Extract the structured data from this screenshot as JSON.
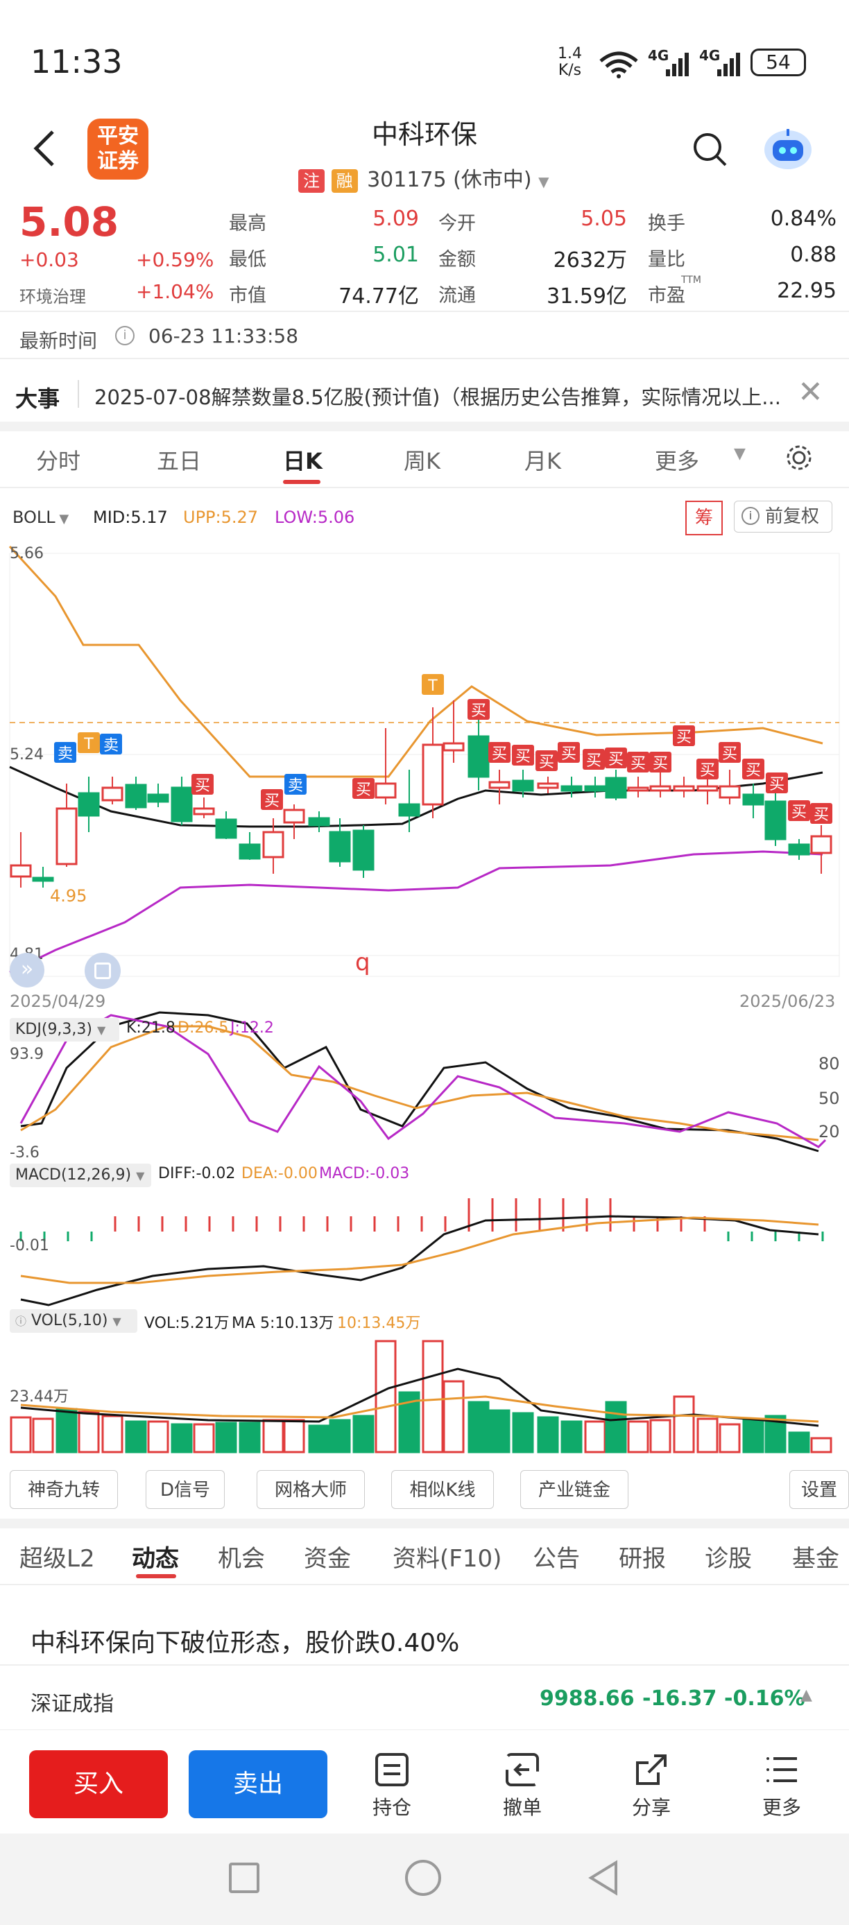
{
  "status_bar": {
    "time": "11:33",
    "net_speed": "1.4",
    "net_unit": "K/s",
    "sig1": "4G",
    "sig2": "4G",
    "battery": "54"
  },
  "header": {
    "logo_line1": "平安",
    "logo_line2": "证券",
    "title": "中科环保",
    "tag_zhu": "注",
    "tag_rong": "融",
    "code": "301175 (休市中)"
  },
  "quote": {
    "price": "5.08",
    "change": "+0.03",
    "change_pct": "+0.59%",
    "sector": "环境治理",
    "sector_pct": "+1.04%",
    "high_label": "最高",
    "high": "5.09",
    "open_label": "今开",
    "open": "5.05",
    "turnover_label": "换手",
    "turnover": "0.84%",
    "low_label": "最低",
    "low": "5.01",
    "amount_label": "金额",
    "amount": "2632万",
    "volratio_label": "量比",
    "volratio": "0.88",
    "mcap_label": "市值",
    "mcap": "74.77亿",
    "float_label": "流通",
    "float": "31.59亿",
    "pe_label": "市盈",
    "pe_sup": "TTM",
    "pe": "22.95"
  },
  "update": {
    "label": "最新时间",
    "value": "06-23 11:33:58"
  },
  "event": {
    "label": "大事",
    "text": "2025-07-08解禁数量8.5亿股(预计值)（根据历史公告推算，实际情况以上..."
  },
  "chart_tabs": [
    "分时",
    "五日",
    "日K",
    "周K",
    "月K",
    "更多"
  ],
  "chart_tab_active": "日K",
  "boll_legend": {
    "name": "BOLL",
    "mid": "MID:5.17",
    "upp": "UPP:5.27",
    "low": "LOW:5.06",
    "chou": "筹",
    "fq": "前复权"
  },
  "price_axis": {
    "top": "5.66",
    "mid": "5.24",
    "bottom": "4.81",
    "low_mark": "4.95",
    "start_date": "2025/04/29",
    "end_date": "2025/06/23",
    "stray": "q"
  },
  "kdj_legend": {
    "name": "KDJ(9,3,3)",
    "k": "K:21.8",
    "d": "D:26.5",
    "j": "J:12.2",
    "top": "93.9",
    "bottom": "-3.6",
    "r80": "80",
    "r50": "50",
    "r20": "20"
  },
  "macd_legend": {
    "name": "MACD(12,26,9)",
    "diff": "DIFF:-0.02",
    "dea": "DEA:-0.00",
    "macd": "MACD:-0.03",
    "axis": "-0.01"
  },
  "vol_legend": {
    "name": "VOL(5,10)",
    "vol": "VOL:5.21万",
    "ma5": "MA 5:10.13万",
    "ma10": "10:13.45万",
    "axis": "23.44万"
  },
  "signal_labels": {
    "buy": "买",
    "sell": "卖",
    "t": "T"
  },
  "tools": [
    "神奇九转",
    "D信号",
    "网格大师",
    "相似K线",
    "产业链金",
    "设置"
  ],
  "info_tabs": [
    "超级L2",
    "动态",
    "机会",
    "资金",
    "资料(F10)",
    "公告",
    "研报",
    "诊股",
    "基金"
  ],
  "info_tab_active": "动态",
  "news_title": "中科环保向下破位形态，股价跌0.40%",
  "index_bar": {
    "name": "深证成指",
    "value": "9988.66",
    "change": "-16.37",
    "pct": "-0.16%"
  },
  "bottom_bar": {
    "buy": "买入",
    "sell": "卖出",
    "hold": "持仓",
    "cancel": "撤单",
    "share": "分享",
    "more": "更多"
  },
  "chart_data": {
    "type": "candlestick",
    "x_range": [
      "2025/04/29",
      "2025/06/23"
    ],
    "ylim": [
      4.81,
      5.66
    ],
    "indicators": [
      "BOLL",
      "KDJ(9,3,3)",
      "MACD(12,26,9)",
      "VOL(5,10)"
    ],
    "grid": true
  },
  "colors": {
    "up": "#e03c3c",
    "down": "#0faa6a",
    "upp": "#e8962f",
    "low": "#b728c6",
    "mid": "#111111",
    "blue": "#1677e8"
  }
}
